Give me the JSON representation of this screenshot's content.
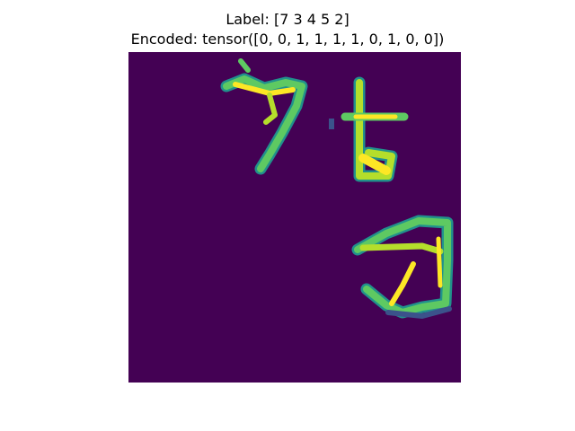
{
  "figure": {
    "title_line1": "Label: [7 3 4 5 2]",
    "title_line2": "Encoded: tensor([0, 0, 1, 1, 1, 1, 0, 1, 0, 0])"
  },
  "colors": {
    "background": "#440154",
    "low": "#3b528b",
    "mid": "#21918c",
    "high": "#5ec962",
    "peak": "#fde725"
  }
}
